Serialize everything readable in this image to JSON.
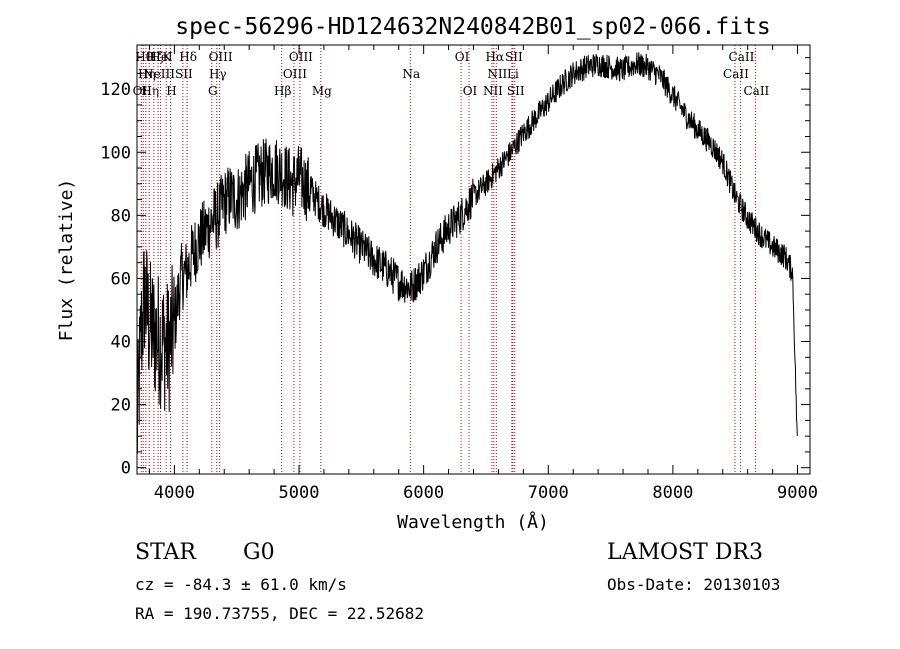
{
  "chart_data": {
    "type": "line",
    "title": "spec-56296-HD124632N240842B01_sp02-066.fits",
    "xlabel": "Wavelength (Å)",
    "ylabel": "Flux (relative)",
    "xlim": [
      3700,
      9100
    ],
    "ylim": [
      -2,
      134
    ],
    "xticks": [
      4000,
      5000,
      6000,
      7000,
      8000,
      9000
    ],
    "yticks": [
      0,
      20,
      40,
      60,
      80,
      100,
      120
    ],
    "grid": false,
    "series": [
      {
        "name": "flux",
        "x": [
          3700,
          3730,
          3760,
          3800,
          3850,
          3900,
          3950,
          4000,
          4050,
          4100,
          4150,
          4200,
          4250,
          4300,
          4350,
          4400,
          4450,
          4500,
          4600,
          4700,
          4800,
          4850,
          4900,
          4950,
          5000,
          5100,
          5200,
          5300,
          5400,
          5500,
          5600,
          5700,
          5800,
          5900,
          6000,
          6100,
          6200,
          6300,
          6400,
          6500,
          6600,
          6700,
          6800,
          6900,
          7000,
          7100,
          7200,
          7300,
          7400,
          7500,
          7600,
          7700,
          7800,
          7900,
          8000,
          8100,
          8200,
          8300,
          8400,
          8500,
          8600,
          8700,
          8800,
          8900,
          8960,
          8990,
          9000
        ],
        "y": [
          10,
          40,
          55,
          45,
          42,
          40,
          38,
          45,
          60,
          62,
          68,
          72,
          75,
          78,
          80,
          84,
          86,
          85,
          90,
          93,
          95,
          94,
          92,
          90,
          92,
          87,
          82,
          78,
          74,
          70,
          66,
          63,
          59,
          57,
          62,
          70,
          76,
          80,
          86,
          90,
          95,
          100,
          106,
          111,
          116,
          121,
          125,
          127,
          128,
          127,
          126,
          128,
          127,
          124,
          118,
          112,
          107,
          103,
          97,
          86,
          79,
          74,
          70,
          67,
          62,
          20,
          5
        ]
      }
    ],
    "lines": [
      {
        "w": 3734,
        "label": "OII",
        "row": 2
      },
      {
        "w": 3750,
        "label": "Hθ",
        "row": 0
      },
      {
        "w": 3771,
        "label": "Hη",
        "row": 1
      },
      {
        "w": 3798,
        "label": "Hη",
        "row": 2
      },
      {
        "w": 3835,
        "label": "Hζ",
        "row": 0
      },
      {
        "w": 3869,
        "label": "NeIII",
        "row": 1
      },
      {
        "w": 3889,
        "label": "HeI",
        "row": 0
      },
      {
        "w": 3934,
        "label": "K",
        "row": 0
      },
      {
        "w": 3969,
        "label": "H",
        "row": 2
      },
      {
        "w": 4068,
        "label": "SII",
        "row": 1
      },
      {
        "w": 4102,
        "label": "Hδ",
        "row": 0
      },
      {
        "w": 4300,
        "label": "G",
        "row": 2
      },
      {
        "w": 4340,
        "label": "Hγ",
        "row": 1
      },
      {
        "w": 4363,
        "label": "OIII",
        "row": 0
      },
      {
        "w": 4861,
        "label": "Hβ",
        "row": 2
      },
      {
        "w": 4959,
        "label": "OIII",
        "row": 1
      },
      {
        "w": 5007,
        "label": "OIII",
        "row": 0
      },
      {
        "w": 5175,
        "label": "Mg",
        "row": 2
      },
      {
        "w": 5893,
        "label": "Na",
        "row": 1
      },
      {
        "w": 6300,
        "label": "OI",
        "row": 0
      },
      {
        "w": 6364,
        "label": "OI",
        "row": 2
      },
      {
        "w": 6548,
        "label": "NII",
        "row": 2
      },
      {
        "w": 6563,
        "label": "Hα",
        "row": 0
      },
      {
        "w": 6583,
        "label": "NII",
        "row": 1
      },
      {
        "w": 6708,
        "label": "Li",
        "row": 1
      },
      {
        "w": 6716,
        "label": "SII",
        "row": 0
      },
      {
        "w": 6731,
        "label": "SII",
        "row": 2
      },
      {
        "w": 8498,
        "label": "CaII",
        "row": 1
      },
      {
        "w": 8542,
        "label": "CaII",
        "row": 0
      },
      {
        "w": 8662,
        "label": "CaII",
        "row": 2
      }
    ]
  },
  "info": {
    "class": "STAR",
    "subclass": "G0",
    "survey": "LAMOST DR3",
    "cz": "cz = -84.3 ± 61.0 km/s",
    "obs_date": "Obs-Date: 20130103",
    "coords": "RA = 190.73755, DEC =  22.52682"
  }
}
